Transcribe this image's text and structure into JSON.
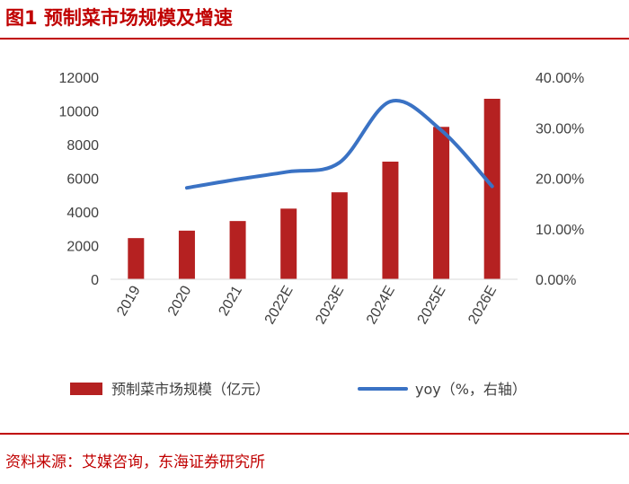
{
  "header": {
    "title": "图1  预制菜市场规模及增速"
  },
  "footer": {
    "source": "资料来源：艾媒咨询，东海证券研究所"
  },
  "colors": {
    "bar": "#b52121",
    "line": "#3a72c4",
    "accent": "#c00000"
  },
  "chart_data": {
    "type": "bar+line",
    "categories": [
      "2019",
      "2020",
      "2021",
      "2022E",
      "2023E",
      "2024E",
      "2025E",
      "2026E"
    ],
    "series": [
      {
        "name": "预制菜市场规模（亿元）",
        "type": "bar",
        "axis": "left",
        "values": [
          2445,
          2888,
          3459,
          4196,
          5165,
          6986,
          9051,
          10720
        ]
      },
      {
        "name": "yoy（%，右轴）",
        "type": "line",
        "axis": "right",
        "values": [
          null,
          18.1,
          19.8,
          21.3,
          23.1,
          35.2,
          29.5,
          18.4
        ]
      }
    ],
    "left_axis": {
      "min": 0,
      "max": 12000,
      "ticks": [
        "0",
        "2000",
        "4000",
        "6000",
        "8000",
        "10000",
        "12000"
      ]
    },
    "right_axis": {
      "min": 0,
      "max": 40,
      "ticks": [
        "0.00%",
        "10.00%",
        "20.00%",
        "30.00%",
        "40.00%"
      ]
    },
    "legend": {
      "position": "bottom",
      "bar_label": "预制菜市场规模（亿元）",
      "line_label": "yoy（%，右轴）"
    }
  }
}
